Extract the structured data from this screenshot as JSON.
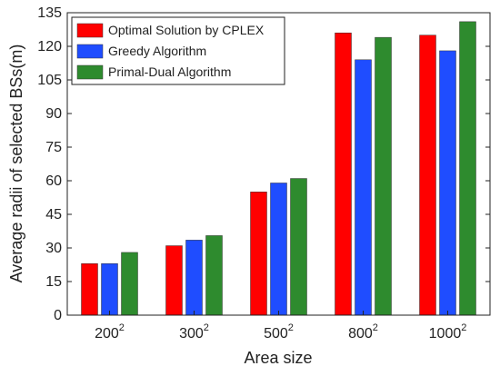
{
  "chart_data": {
    "type": "bar",
    "title": "",
    "xlabel": "Area size",
    "ylabel": "Average radii of selected BSs(m)",
    "categories": [
      {
        "base": "200",
        "exp": "2"
      },
      {
        "base": "300",
        "exp": "2"
      },
      {
        "base": "500",
        "exp": "2"
      },
      {
        "base": "800",
        "exp": "2"
      },
      {
        "base": "1000",
        "exp": "2"
      }
    ],
    "ylim": [
      0,
      135
    ],
    "yticks": [
      0,
      15,
      30,
      45,
      60,
      75,
      90,
      105,
      120,
      135
    ],
    "grid": false,
    "legend_position": "top-left",
    "series": [
      {
        "name": "Optimal Solution by CPLEX",
        "color": "#ff0000",
        "values": [
          23,
          31,
          55,
          126,
          125
        ]
      },
      {
        "name": "Greedy Algorithm",
        "color": "#1f4dff",
        "values": [
          23,
          33.5,
          59,
          114,
          118
        ]
      },
      {
        "name": "Primal-Dual Algorithm",
        "color": "#2e8b2e",
        "values": [
          28,
          35.5,
          61,
          124,
          131
        ]
      }
    ]
  }
}
